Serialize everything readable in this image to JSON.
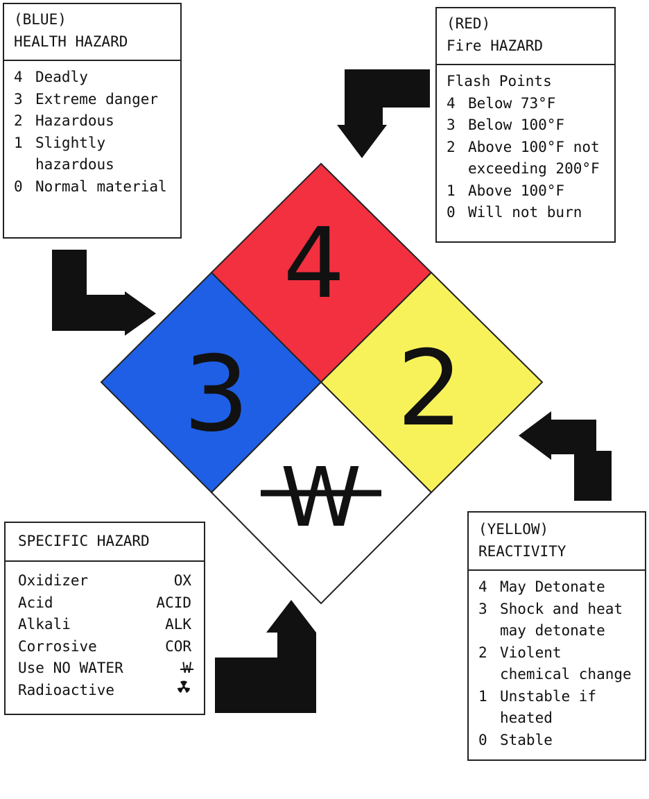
{
  "health": {
    "title_line1": "(BLUE)",
    "title_line2": "HEALTH HAZARD",
    "items": [
      {
        "num": "4",
        "text": "Deadly"
      },
      {
        "num": "3",
        "text": "Extreme danger"
      },
      {
        "num": "2",
        "text": "Hazardous"
      },
      {
        "num": "1",
        "text": "Slightly hazardous"
      },
      {
        "num": "0",
        "text": "Normal material"
      }
    ]
  },
  "fire": {
    "title_line1": "(RED)",
    "title_line2": "Fire HAZARD",
    "subtitle": "Flash Points",
    "items": [
      {
        "num": "4",
        "text": "Below 73°F"
      },
      {
        "num": "3",
        "text": "Below 100°F"
      },
      {
        "num": "2",
        "text": "Above 100°F not exceeding 200°F"
      },
      {
        "num": "1",
        "text": "Above 100°F"
      },
      {
        "num": "0",
        "text": "Will not burn"
      }
    ]
  },
  "specific": {
    "title": "SPECIFIC HAZARD",
    "items": [
      {
        "name": "Oxidizer",
        "code": "OX"
      },
      {
        "name": "Acid",
        "code": "ACID"
      },
      {
        "name": "Alkali",
        "code": "ALK"
      },
      {
        "name": "Corrosive",
        "code": "COR"
      },
      {
        "name": "Use NO WATER",
        "code": "W"
      },
      {
        "name": "Radioactive",
        "code": ""
      }
    ]
  },
  "reactivity": {
    "title_line1": "(YELLOW)",
    "title_line2": "REACTIVITY",
    "items": [
      {
        "num": "4",
        "text": "May Detonate"
      },
      {
        "num": "3",
        "text": "Shock and heat may detonate"
      },
      {
        "num": "2",
        "text": "Violent chemical change"
      },
      {
        "num": "1",
        "text": "Unstable if heated"
      },
      {
        "num": "0",
        "text": "Stable"
      }
    ]
  },
  "diamond": {
    "fire_value": "4",
    "health_value": "3",
    "reactivity_value": "2",
    "special_value": "W"
  },
  "colors": {
    "health": "#1f5fe6",
    "fire": "#f2303f",
    "reactivity": "#f7f25a",
    "special": "#ffffff",
    "arrow": "#111111"
  }
}
